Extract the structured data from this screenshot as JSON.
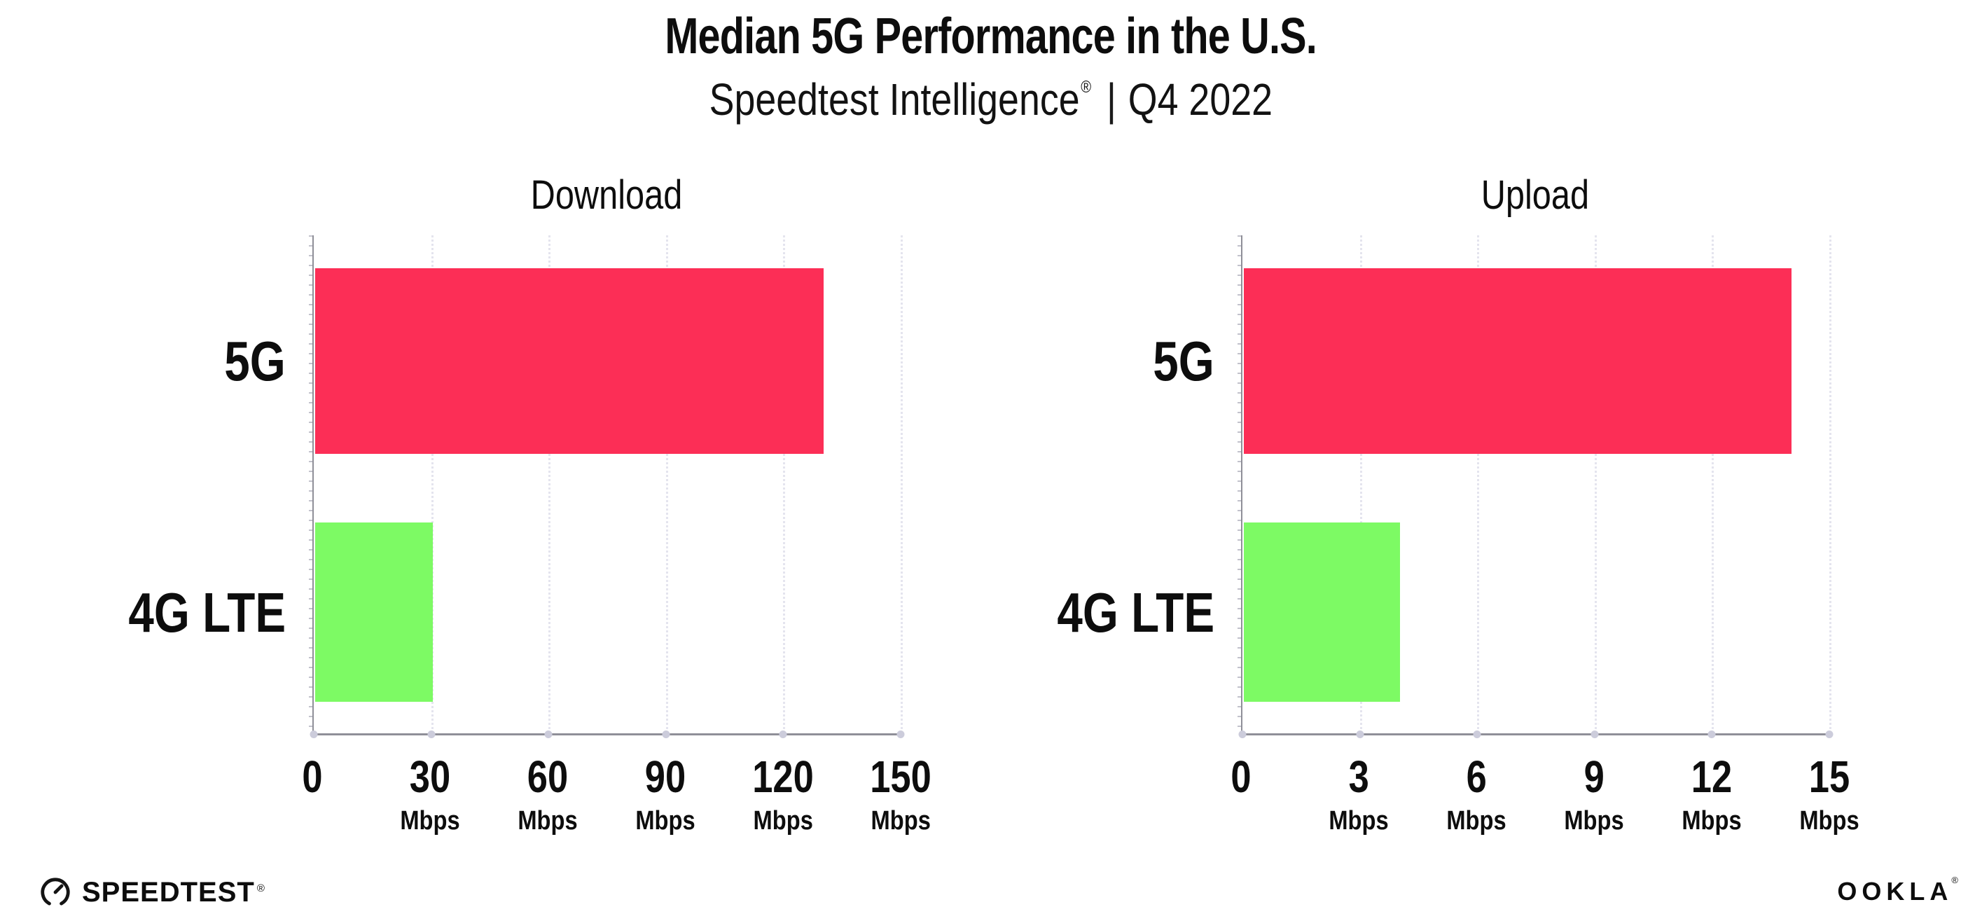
{
  "header": {
    "title": "Median 5G Performance in the U.S.",
    "subtitle": {
      "brand": "Speedtest Intelligence",
      "registered_mark": "®",
      "divider": "|",
      "period": "Q4 2022"
    }
  },
  "chart_data": [
    {
      "type": "bar",
      "orientation": "horizontal",
      "title": "Download",
      "categories": [
        "5G",
        "4G LTE"
      ],
      "values": [
        130,
        30
      ],
      "value_unit": "Mbps",
      "xlim": [
        0,
        150
      ],
      "xticks": [
        0,
        30,
        60,
        90,
        120,
        150
      ],
      "xtick_unit": "Mbps",
      "series_colors": {
        "5G": "#fc2e56",
        "4G LTE": "#7dfa64"
      },
      "grid": "vertical-dotted",
      "legend": "none"
    },
    {
      "type": "bar",
      "orientation": "horizontal",
      "title": "Upload",
      "categories": [
        "5G",
        "4G LTE"
      ],
      "values": [
        14,
        4
      ],
      "value_unit": "Mbps",
      "xlim": [
        0,
        15
      ],
      "xticks": [
        0,
        3,
        6,
        9,
        12,
        15
      ],
      "xtick_unit": "Mbps",
      "series_colors": {
        "5G": "#fc2e56",
        "4G LTE": "#7dfa64"
      },
      "grid": "vertical-dotted",
      "legend": "none"
    }
  ],
  "footer": {
    "speedtest": {
      "label": "SPEEDTEST",
      "registered_mark": "®"
    },
    "ookla": {
      "label": "OOKLA",
      "registered_mark": "®"
    }
  },
  "colors": {
    "bar_5g": "#fc2e56",
    "bar_4g_lte": "#7dfa64",
    "gridline": "#e4e4ee",
    "axis": "#8f8f98",
    "tick_dot": "#ccccdb",
    "text": "#0d0d0d",
    "background": "#ffffff"
  }
}
